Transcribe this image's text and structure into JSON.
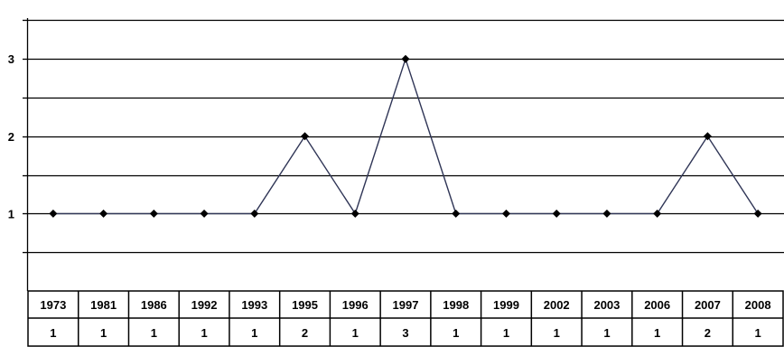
{
  "chart_data": {
    "type": "line",
    "categories": [
      "1973",
      "1981",
      "1986",
      "1992",
      "1993",
      "1995",
      "1996",
      "1997",
      "1998",
      "1999",
      "2002",
      "2003",
      "2006",
      "2007",
      "2008"
    ],
    "values": [
      1,
      1,
      1,
      1,
      1,
      2,
      1,
      3,
      1,
      1,
      1,
      1,
      1,
      2,
      1
    ],
    "yticks": [
      "1",
      "2",
      "3"
    ],
    "ylim": [
      0,
      3.5
    ],
    "grid": "horizontal",
    "table_below": true,
    "colors": {
      "line": "#2f3556",
      "marker": "#000000",
      "grid": "#000000"
    }
  }
}
